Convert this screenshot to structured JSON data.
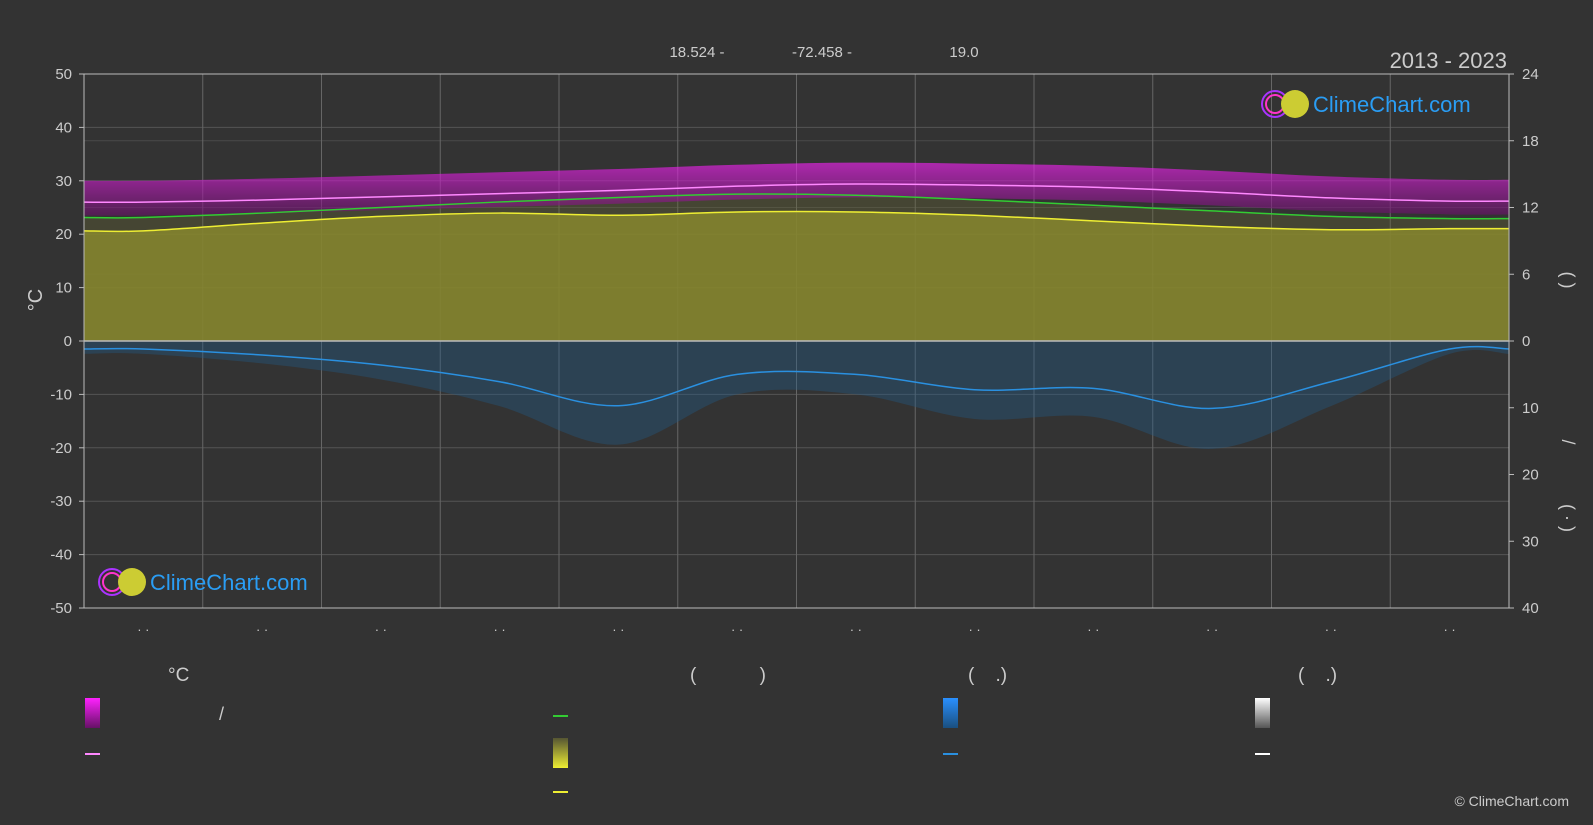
{
  "header": {
    "lat": "18.524 -",
    "lon": "-72.458 -",
    "elev": "19.0",
    "period": "2013 - 2023"
  },
  "watermark": {
    "text": "ClimeChart.com"
  },
  "copyright": "© ClimeChart.com",
  "axis": {
    "left_label": "°C",
    "left_ticks": [
      50,
      40,
      30,
      20,
      10,
      0,
      -10,
      -20,
      -30,
      -40,
      -50
    ],
    "right_upper_ticks": [
      24,
      18,
      12,
      6,
      0
    ],
    "right_lower_ticks": [
      10,
      20,
      30,
      40
    ],
    "right_upper_label_parens": "(        )",
    "right_lower_label": "/",
    "right_lower_label_parens": "(  ·  )",
    "month_labels": [
      "· ·",
      "· ·",
      "· ·",
      "· ·",
      "· ·",
      "· ·",
      "· ·",
      "· ·",
      "· ·",
      "· ·",
      "· ·",
      "· ·"
    ]
  },
  "legend": {
    "col1_head": "°C",
    "col1_range_slash": "/",
    "col2_head": "(            )",
    "col3_head": "(    .)",
    "col4_head": "(    .)"
  },
  "colors": {
    "background": "#333333",
    "grid": "#555555",
    "max_temp_band": "#cc22cc",
    "max_temp_line": "#ff88ff",
    "daylight_line": "#33cc33",
    "sunshine_fill": "#99992a",
    "sunshine_line": "#eeee33",
    "rain_line": "#2a90e0",
    "rain_band": "#1f5f8f",
    "snow_line": "#ffffff",
    "watermark_blue": "#2a9df4"
  },
  "chart_data": {
    "type": "line",
    "x": [
      "1",
      "2",
      "3",
      "4",
      "5",
      "6",
      "7",
      "8",
      "9",
      "10",
      "11",
      "12"
    ],
    "temp_ylim": [
      -50,
      50
    ],
    "hours_ylim": [
      0,
      24
    ],
    "precip_ylim": [
      0,
      40
    ],
    "grid": true,
    "series": [
      {
        "key": "max_temp_avg",
        "axis": "temp",
        "values": [
          26.0,
          26.4,
          27.0,
          27.6,
          28.2,
          29.0,
          29.4,
          29.2,
          28.8,
          27.9,
          26.8,
          26.2
        ]
      },
      {
        "key": "daylight_hours",
        "axis": "hours",
        "values": [
          11.1,
          11.5,
          12.0,
          12.5,
          12.9,
          13.2,
          13.1,
          12.7,
          12.2,
          11.7,
          11.2,
          11.0
        ]
      },
      {
        "key": "sunshine_hours",
        "axis": "hours",
        "values": [
          9.9,
          10.6,
          11.2,
          11.5,
          11.3,
          11.6,
          11.6,
          11.3,
          10.8,
          10.3,
          10.0,
          10.1
        ]
      },
      {
        "key": "precip_avg",
        "axis": "precip",
        "values": [
          1.2,
          2.1,
          3.6,
          6.1,
          9.7,
          5.0,
          5.0,
          7.3,
          7.1,
          10.1,
          6.1,
          1.2
        ]
      }
    ]
  }
}
